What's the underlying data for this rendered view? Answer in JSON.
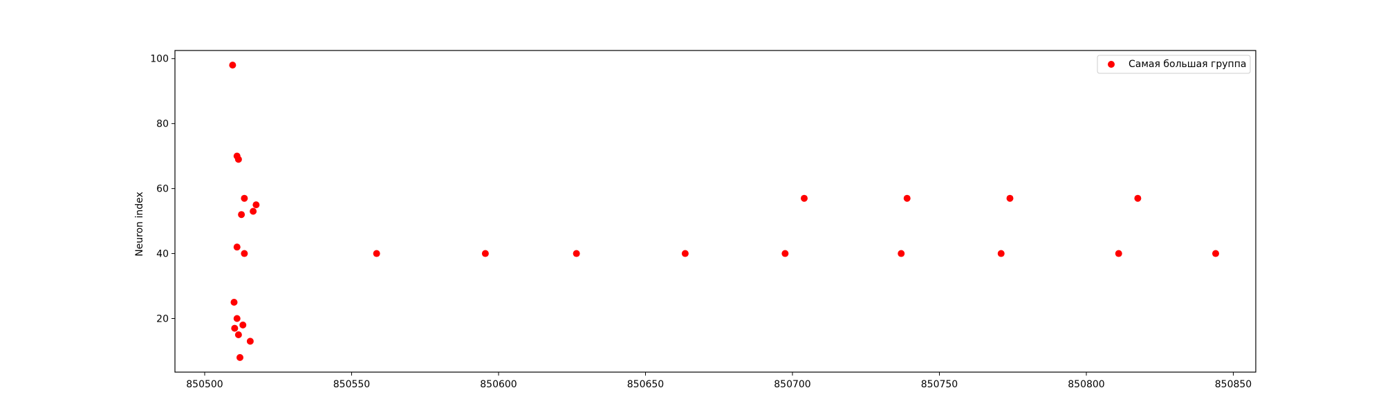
{
  "chart_data": {
    "type": "scatter",
    "title": "",
    "xlabel": "",
    "ylabel": "Neuron index",
    "xlim": [
      850492,
      860000
    ],
    "ylim": [
      3.5,
      102.5
    ],
    "xticks": [
      850500,
      850550,
      850600,
      850650,
      850700,
      850750,
      850800,
      850850
    ],
    "xtick_labels": [
      "850500",
      "850550",
      "850600",
      "850650",
      "850700",
      "850750",
      "850800",
      "850850"
    ],
    "yticks": [
      20,
      40,
      60,
      80,
      100
    ],
    "ytick_labels": [
      "20",
      "40",
      "60",
      "80",
      "100"
    ],
    "grid": false,
    "legend_position": "upper right",
    "series": [
      {
        "name": "Самая большая группа",
        "color": "#ff0000",
        "points": [
          {
            "x": 850509.5,
            "y": 98
          },
          {
            "x": 850511.0,
            "y": 70
          },
          {
            "x": 850511.5,
            "y": 69
          },
          {
            "x": 850513.5,
            "y": 57
          },
          {
            "x": 850517.5,
            "y": 55
          },
          {
            "x": 850516.5,
            "y": 53
          },
          {
            "x": 850512.5,
            "y": 52
          },
          {
            "x": 850511.0,
            "y": 42
          },
          {
            "x": 850513.5,
            "y": 40
          },
          {
            "x": 850510.0,
            "y": 25
          },
          {
            "x": 850511.0,
            "y": 20
          },
          {
            "x": 850513.0,
            "y": 18
          },
          {
            "x": 850510.2,
            "y": 17
          },
          {
            "x": 850511.5,
            "y": 15
          },
          {
            "x": 850515.5,
            "y": 13
          },
          {
            "x": 850512.0,
            "y": 8
          },
          {
            "x": 850558.5,
            "y": 40
          },
          {
            "x": 850595.5,
            "y": 40
          },
          {
            "x": 850626.5,
            "y": 40
          },
          {
            "x": 850663.5,
            "y": 40
          },
          {
            "x": 850697.5,
            "y": 40
          },
          {
            "x": 850704.0,
            "y": 57
          },
          {
            "x": 850737.0,
            "y": 40
          },
          {
            "x": 850739.0,
            "y": 57
          },
          {
            "x": 850771.0,
            "y": 40
          },
          {
            "x": 850774.0,
            "y": 57
          },
          {
            "x": 850811.0,
            "y": 40
          },
          {
            "x": 850817.5,
            "y": 57
          },
          {
            "x": 850844.0,
            "y": 40
          }
        ]
      }
    ]
  }
}
